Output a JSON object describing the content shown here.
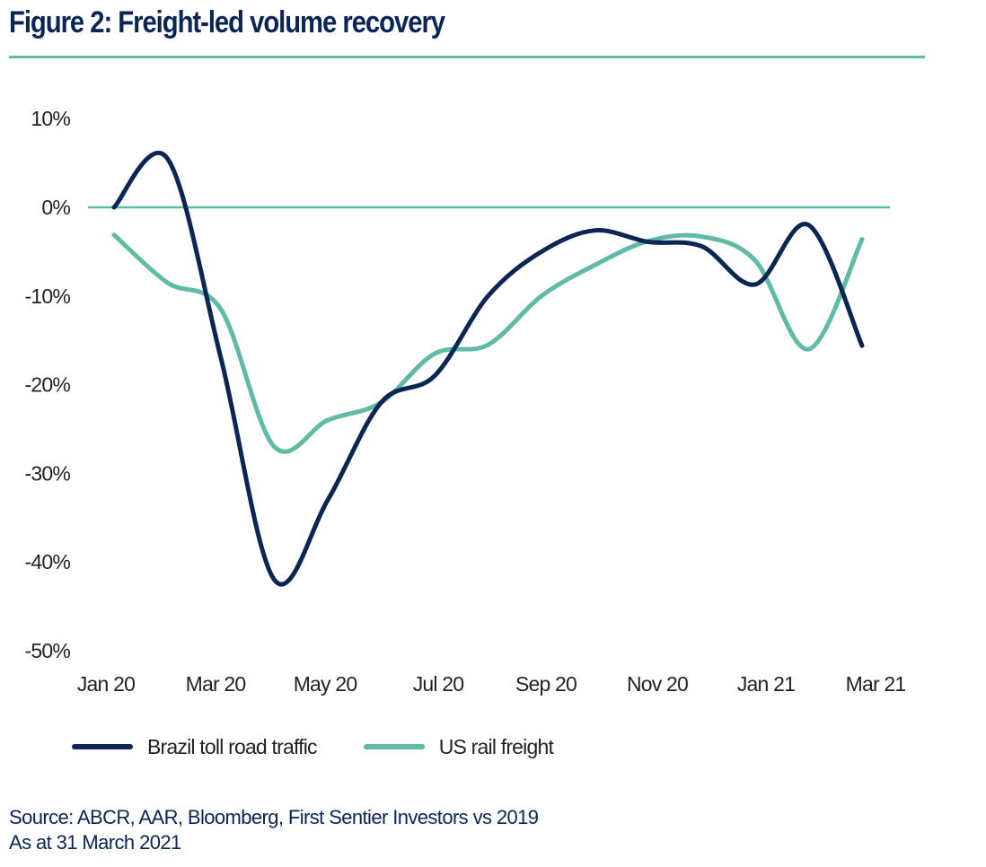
{
  "title": "Figure 2: Freight-led volume recovery",
  "colors": {
    "brand_dark": "#0b2555",
    "brand_teal": "#5fbba6",
    "axis_text": "#222222"
  },
  "chart_data": {
    "type": "line",
    "title": "Figure 2: Freight-led volume recovery",
    "xlabel": "",
    "ylabel": "",
    "x": [
      "Jan 20",
      "Feb 20",
      "Mar 20",
      "Apr 20",
      "May 20",
      "Jun 20",
      "Jul 20",
      "Aug 20",
      "Sep 20",
      "Oct 20",
      "Nov 20",
      "Dec 20",
      "Jan 21",
      "Feb 21",
      "Mar 21"
    ],
    "x_tick_labels": [
      "Jan 20",
      "Mar 20",
      "May 20",
      "Jul 20",
      "Sep 20",
      "Nov 20",
      "Jan 21",
      "Mar 21"
    ],
    "y_tick_labels": [
      "10%",
      "0%",
      "-10%",
      "-20%",
      "-30%",
      "-40%",
      "-50%"
    ],
    "y_ticks": [
      10,
      0,
      -10,
      -20,
      -30,
      -40,
      -50
    ],
    "ylim": [
      -50,
      10
    ],
    "y_unit": "%",
    "reference_line": 0,
    "grid": false,
    "legend_position": "bottom-left",
    "series": [
      {
        "name": "Brazil toll road traffic",
        "color": "#0b2555",
        "values": [
          0,
          5.5,
          -17,
          -42,
          -33,
          -22,
          -19,
          -10,
          -5,
          -2.6,
          -3.9,
          -4.4,
          -8.7,
          -2,
          -15.6
        ]
      },
      {
        "name": "US rail freight",
        "color": "#5fbba6",
        "values": [
          -3.1,
          -8.5,
          -11.5,
          -27,
          -24,
          -22,
          -16.5,
          -15.5,
          -10,
          -6.5,
          -3.8,
          -3.3,
          -6,
          -16,
          -3.6
        ]
      }
    ]
  },
  "legend": [
    {
      "label": "Brazil toll road traffic",
      "color": "#0b2555"
    },
    {
      "label": "US rail freight",
      "color": "#5fbba6"
    }
  ],
  "footer": {
    "source": "Source: ABCR, AAR, Bloomberg, First Sentier Investors vs 2019",
    "as_at": "As at 31 March 2021"
  }
}
